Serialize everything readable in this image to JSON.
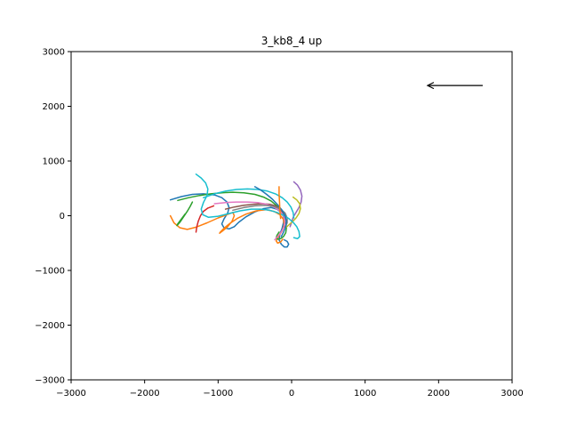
{
  "chart_data": {
    "type": "line",
    "title": "3_kb8_4 up",
    "xlabel": "",
    "ylabel": "",
    "xlim": [
      -3000,
      3000
    ],
    "ylim": [
      -3000,
      3000
    ],
    "xticks": [
      -3000,
      -2000,
      -1000,
      0,
      1000,
      2000,
      3000
    ],
    "yticks": [
      -3000,
      -2000,
      -1000,
      0,
      1000,
      2000,
      3000
    ],
    "xtick_labels": [
      "−3000",
      "−2000",
      "−1000",
      "0",
      "1000",
      "2000",
      "3000"
    ],
    "ytick_labels": [
      "−3000",
      "−2000",
      "−1000",
      "0",
      "1000",
      "2000",
      "3000"
    ],
    "grid": false,
    "legend": "none",
    "annotation": {
      "type": "arrow",
      "from": [
        2600,
        2380
      ],
      "to": [
        1850,
        2380
      ],
      "color": "#000000"
    },
    "series": [
      {
        "color": "#1f77b4",
        "x": [
          -1650,
          -1500,
          -1350,
          -1200,
          -1050,
          -950,
          -880,
          -850,
          -870,
          -920,
          -950,
          -920,
          -850,
          -780,
          -720,
          -620,
          -500,
          -380,
          -280,
          -200,
          -140,
          -110,
          -110,
          -130,
          -160,
          -170,
          -140,
          -100,
          -60,
          -40,
          -60,
          -100
        ],
        "y": [
          290,
          350,
          390,
          400,
          380,
          330,
          250,
          150,
          50,
          -60,
          -150,
          -220,
          -240,
          -200,
          -120,
          -20,
          70,
          130,
          150,
          120,
          60,
          -20,
          -120,
          -230,
          -340,
          -440,
          -520,
          -570,
          -570,
          -520,
          -470,
          -440
        ]
      },
      {
        "color": "#ff7f0e",
        "x": [
          -1650,
          -1600,
          -1520,
          -1420,
          -1300,
          -1150,
          -1000,
          -880,
          -800,
          -780,
          -810,
          -870,
          -940,
          -980,
          -970,
          -920,
          -840,
          -740,
          -620,
          -480,
          -350,
          -240,
          -160,
          -110,
          -100,
          -130,
          -180,
          -210,
          -190,
          -150,
          -120
        ],
        "y": [
          0,
          -130,
          -220,
          -250,
          -210,
          -130,
          -40,
          20,
          60,
          0,
          -100,
          -200,
          -280,
          -320,
          -300,
          -230,
          -140,
          -50,
          30,
          90,
          110,
          80,
          20,
          -70,
          -170,
          -280,
          -380,
          -460,
          -500,
          -480,
          -430
        ]
      },
      {
        "color": "#2ca02c",
        "x": [
          -1550,
          -1400,
          -1250,
          -1100,
          -950,
          -800,
          -650,
          -500,
          -380,
          -280,
          -200,
          -140,
          -100,
          -80,
          -70,
          -80,
          -110,
          -150,
          -190,
          -210,
          -200,
          -170
        ],
        "y": [
          280,
          330,
          370,
          400,
          420,
          430,
          420,
          390,
          340,
          270,
          180,
          80,
          -20,
          -120,
          -220,
          -310,
          -380,
          -420,
          -430,
          -410,
          -360,
          -300
        ]
      },
      {
        "color": "#2ca02c",
        "x": [
          -1350,
          -1380,
          -1420,
          -1470,
          -1520,
          -1560,
          -1550,
          -1500,
          -1450
        ],
        "y": [
          250,
          170,
          80,
          -20,
          -120,
          -180,
          -150,
          -60,
          30
        ]
      },
      {
        "color": "#d62728",
        "x": [
          -1300,
          -1290,
          -1270,
          -1240,
          -1200,
          -1140,
          -1060
        ],
        "y": [
          -300,
          -200,
          -100,
          0,
          80,
          140,
          180
        ]
      },
      {
        "color": "#9467bd",
        "x": [
          30,
          80,
          120,
          140,
          130,
          100,
          60,
          20,
          0,
          -20
        ],
        "y": [
          620,
          560,
          470,
          360,
          250,
          150,
          60,
          -30,
          -120,
          -200
        ]
      },
      {
        "color": "#8c564b",
        "x": [
          -900,
          -780,
          -650,
          -520,
          -400,
          -300,
          -220,
          -160,
          -120,
          -100
        ],
        "y": [
          120,
          160,
          190,
          210,
          220,
          210,
          180,
          130,
          60,
          -20
        ]
      },
      {
        "color": "#e377c2",
        "x": [
          -1050,
          -900,
          -750,
          -600,
          -460,
          -340,
          -240,
          -160,
          -110,
          -90,
          -100,
          -140,
          -190,
          -230
        ],
        "y": [
          220,
          240,
          250,
          250,
          240,
          210,
          160,
          90,
          0,
          -100,
          -200,
          -300,
          -380,
          -440
        ]
      },
      {
        "color": "#7f7f7f",
        "x": [
          -800,
          -650,
          -500,
          -360,
          -240,
          -150,
          -90,
          -60,
          -60,
          -90
        ],
        "y": [
          100,
          150,
          180,
          190,
          170,
          120,
          50,
          -40,
          -130,
          -210
        ]
      },
      {
        "color": "#bcbd22",
        "x": [
          20,
          70,
          110,
          120,
          100,
          60,
          10,
          -40,
          -80
        ],
        "y": [
          340,
          290,
          220,
          130,
          40,
          -40,
          -110,
          -170,
          -220
        ]
      },
      {
        "color": "#17becf",
        "x": [
          -1300,
          -1230,
          -1170,
          -1140,
          -1150,
          -1200,
          -1230,
          -1210,
          -1130,
          -1000,
          -850,
          -700,
          -550,
          -420,
          -300,
          -200,
          -110,
          -40,
          20,
          70,
          100,
          110,
          80,
          30
        ],
        "y": [
          760,
          690,
          600,
          490,
          370,
          240,
          120,
          20,
          -30,
          -10,
          40,
          90,
          120,
          120,
          100,
          60,
          10,
          -50,
          -120,
          -200,
          -290,
          -380,
          -420,
          -400
        ]
      },
      {
        "color": "#17becf",
        "x": [
          -1200,
          -1050,
          -900,
          -750,
          -600,
          -460,
          -330,
          -220,
          -130,
          -60,
          -10,
          20,
          30
        ],
        "y": [
          330,
          400,
          450,
          480,
          490,
          480,
          450,
          400,
          330,
          250,
          160,
          60,
          -40
        ]
      },
      {
        "color": "#1f77b4",
        "x": [
          -500,
          -420,
          -340,
          -260,
          -190,
          -130,
          -90,
          -70,
          -80,
          -110,
          -140
        ],
        "y": [
          530,
          470,
          390,
          300,
          200,
          100,
          0,
          -100,
          -200,
          -300,
          -380
        ]
      },
      {
        "color": "#ff7f0e",
        "x": [
          -170,
          -170,
          -165,
          -160,
          -150
        ],
        "y": [
          530,
          400,
          250,
          100,
          -50
        ]
      }
    ]
  }
}
